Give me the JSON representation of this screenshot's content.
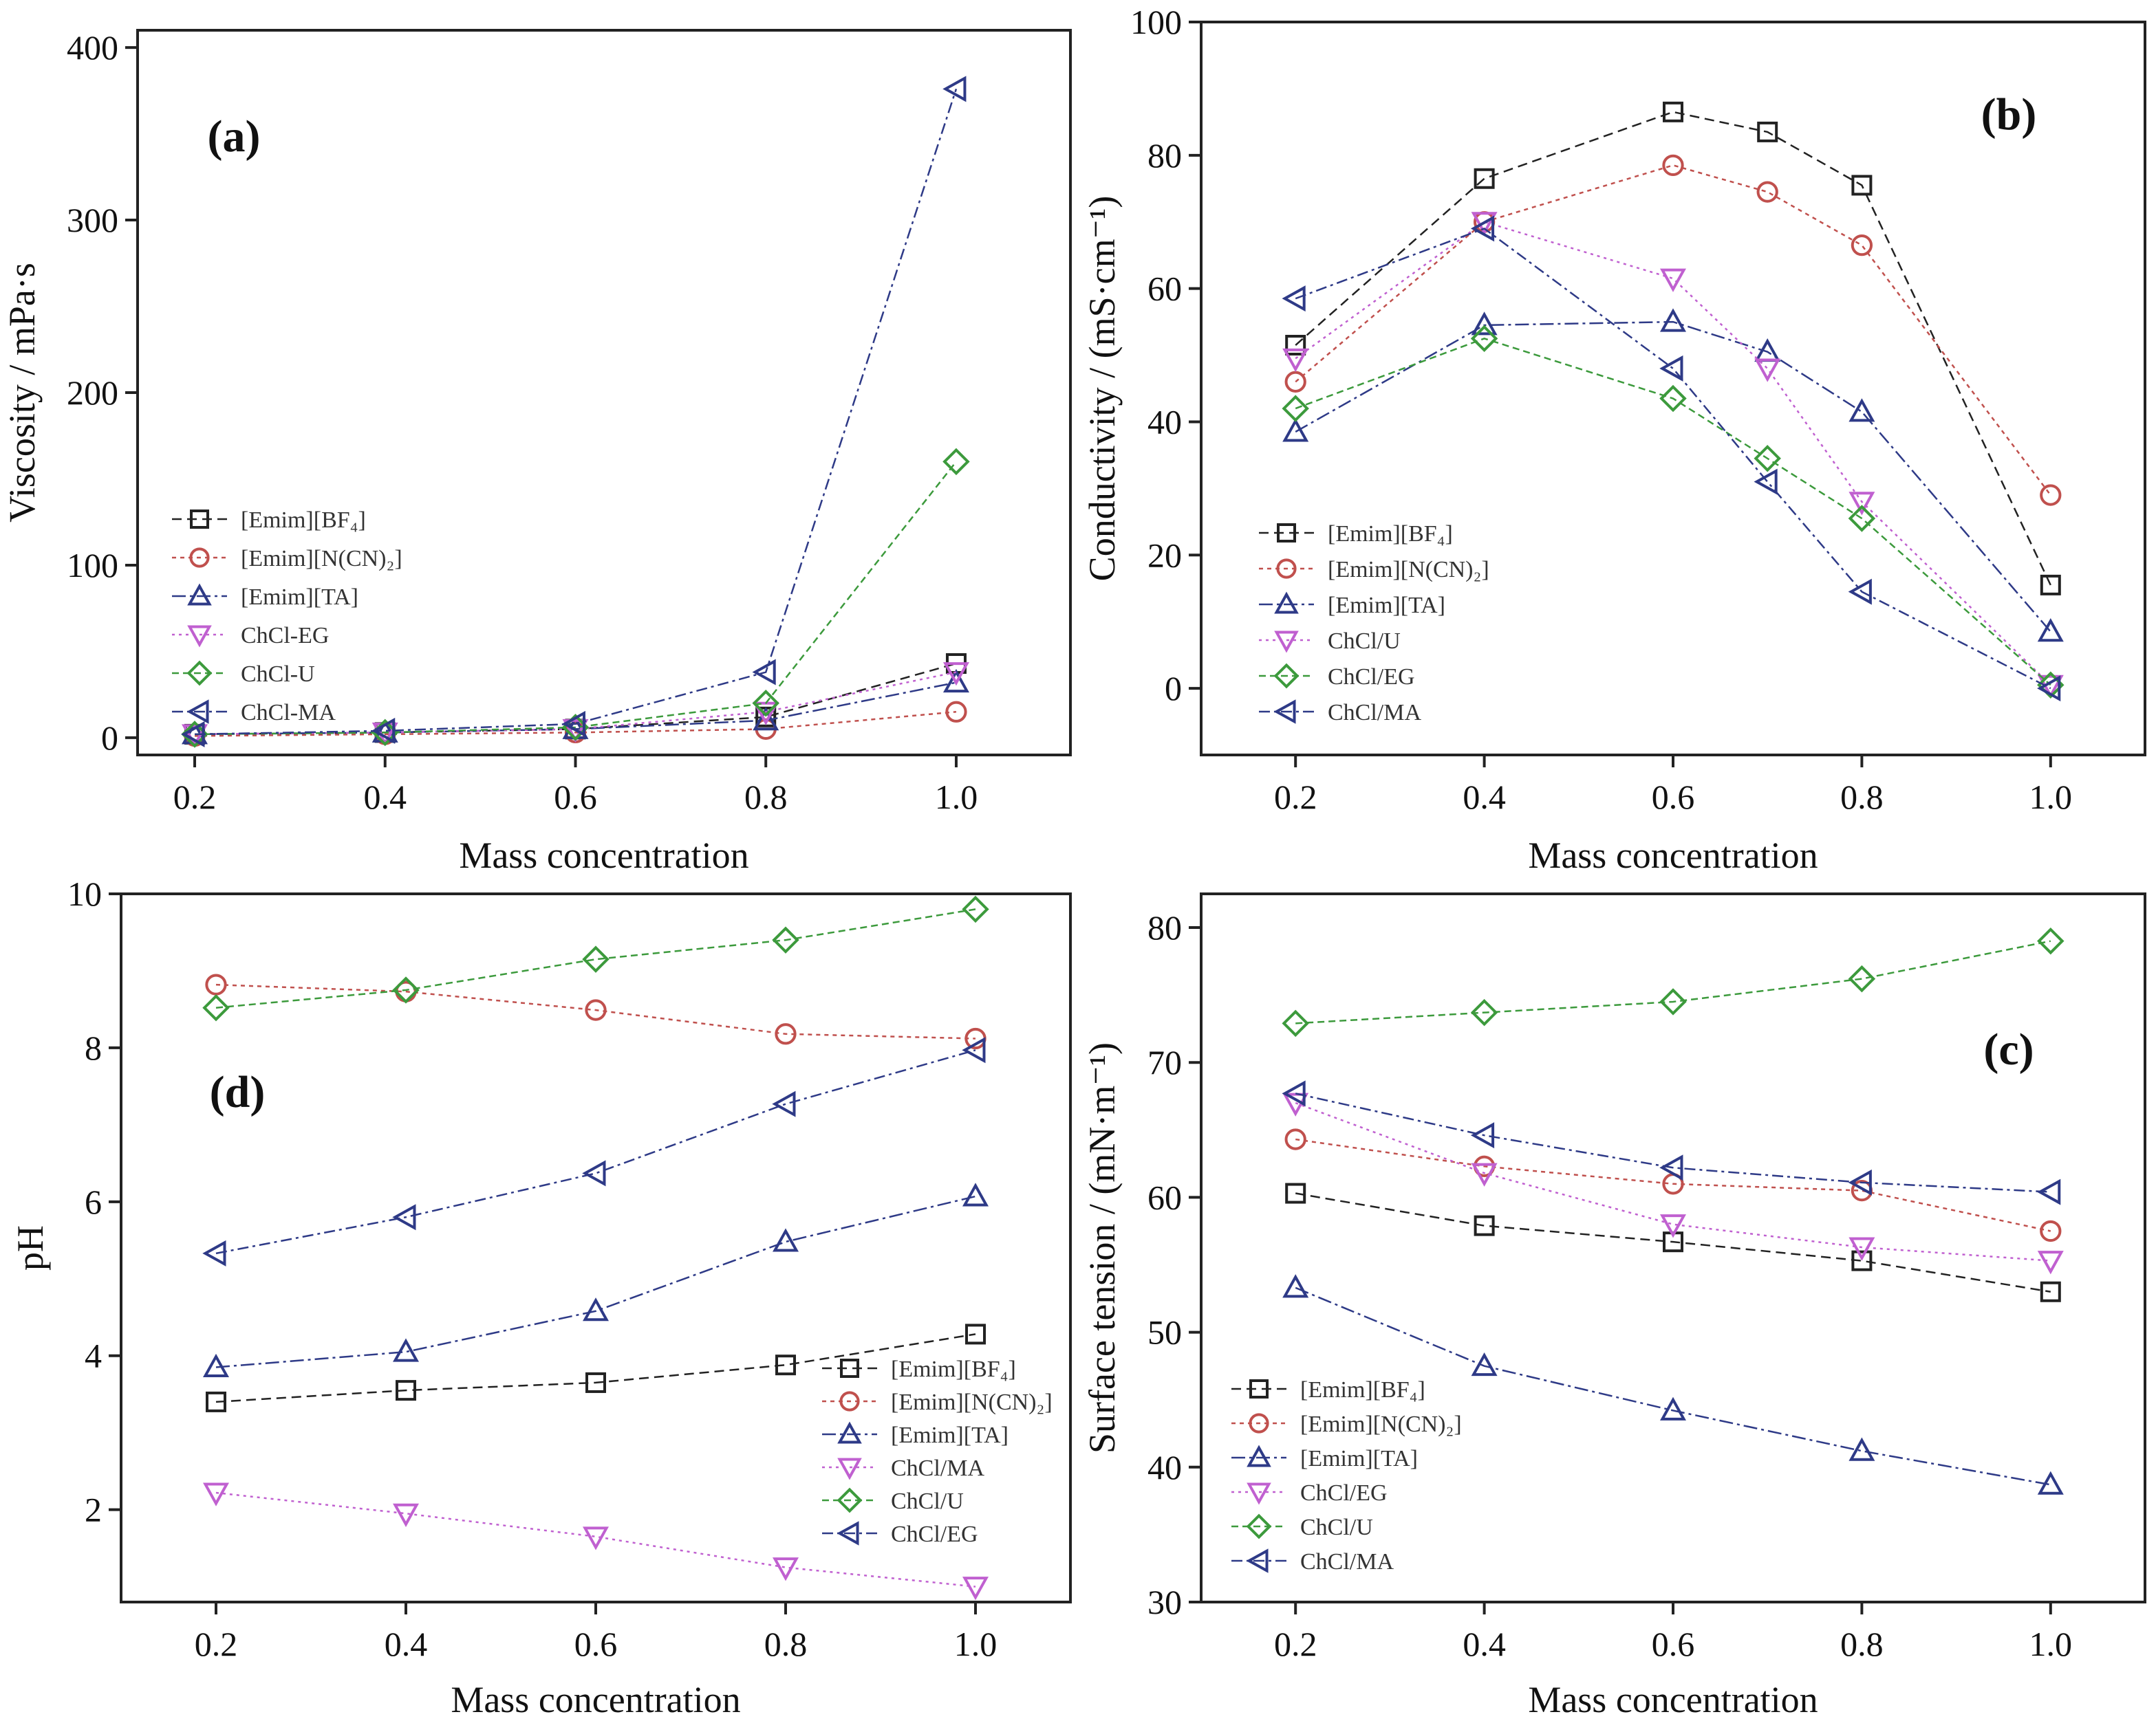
{
  "chart_data": [
    {
      "id": "a",
      "type": "line",
      "panel_label": "(a)",
      "xlabel": "Mass concentration",
      "ylabel": "Viscosity / mPa·s",
      "xlim": [
        0.14,
        1.12
      ],
      "ylim": [
        -10,
        410
      ],
      "xticks": [
        0.2,
        0.4,
        0.6,
        0.8,
        1.0
      ],
      "xtick_labels": [
        "0.2",
        "0.4",
        "0.6",
        "0.8",
        "1.0"
      ],
      "yticks": [
        0,
        100,
        200,
        300,
        400
      ],
      "ytick_labels": [
        "0",
        "100",
        "200",
        "300",
        "400"
      ],
      "legend_position": "lower-left",
      "series": [
        {
          "name": "[Emim][BF4]",
          "label": "[Emim][BF₄]",
          "marker": "square",
          "color": "#222222",
          "x": [
            0.2,
            0.4,
            0.6,
            0.8,
            1.0
          ],
          "y": [
            2,
            3,
            5,
            12,
            43
          ]
        },
        {
          "name": "[Emim][N(CN)2]",
          "label": "[Emim][N(CN)₂]",
          "marker": "circle",
          "color": "#c0504d",
          "x": [
            0.2,
            0.4,
            0.6,
            0.8,
            1.0
          ],
          "y": [
            1,
            2,
            3,
            5,
            15
          ]
        },
        {
          "name": "[Emim][TA]",
          "label": "[Emim][TA]",
          "marker": "triangle-up",
          "color": "#2e3a87",
          "x": [
            0.2,
            0.4,
            0.6,
            0.8,
            1.0
          ],
          "y": [
            2,
            3,
            5,
            10,
            32
          ]
        },
        {
          "name": "ChCl-EG",
          "label": "ChCl-EG",
          "marker": "triangle-down",
          "color": "#c060d0",
          "x": [
            0.2,
            0.4,
            0.6,
            0.8,
            1.0
          ],
          "y": [
            2,
            3,
            5,
            15,
            38
          ]
        },
        {
          "name": "ChCl-U",
          "label": "ChCl-U",
          "marker": "diamond",
          "color": "#3c9a3c",
          "x": [
            0.2,
            0.4,
            0.6,
            0.8,
            1.0
          ],
          "y": [
            2,
            3,
            6,
            20,
            160
          ]
        },
        {
          "name": "ChCl-MA",
          "label": "ChCl-MA",
          "marker": "triangle-left",
          "color": "#2e3a87",
          "x": [
            0.2,
            0.4,
            0.6,
            0.8,
            1.0
          ],
          "y": [
            2,
            4,
            8,
            38,
            376
          ]
        }
      ]
    },
    {
      "id": "b",
      "type": "line",
      "panel_label": "(b)",
      "xlabel": "Mass concentration",
      "ylabel": "Conductivity / (mS·cm⁻¹)",
      "xlim": [
        0.1,
        1.1
      ],
      "ylim": [
        -10,
        100
      ],
      "xticks": [
        0.2,
        0.4,
        0.6,
        0.8,
        1.0
      ],
      "xtick_labels": [
        "0.2",
        "0.4",
        "0.6",
        "0.8",
        "1.0"
      ],
      "yticks": [
        0,
        20,
        40,
        60,
        80,
        100
      ],
      "ytick_labels": [
        "0",
        "20",
        "40",
        "60",
        "80",
        "100"
      ],
      "legend_position": "lower-left",
      "series": [
        {
          "name": "[Emim][BF4]",
          "label": "[Emim][BF₄]",
          "marker": "square",
          "color": "#222222",
          "x": [
            0.2,
            0.4,
            0.6,
            0.7,
            0.8,
            1.0
          ],
          "y": [
            51.5,
            76.5,
            86.5,
            83.5,
            75.5,
            15.5
          ]
        },
        {
          "name": "[Emim][N(CN)2]",
          "label": "[Emim][N(CN)₂]",
          "marker": "circle",
          "color": "#c0504d",
          "x": [
            0.2,
            0.4,
            0.6,
            0.7,
            0.8,
            1.0
          ],
          "y": [
            46,
            70,
            78.5,
            74.5,
            66.5,
            29
          ]
        },
        {
          "name": "[Emim][TA]",
          "label": "[Emim][TA]",
          "marker": "triangle-up",
          "color": "#2e3a87",
          "x": [
            0.2,
            0.4,
            0.6,
            0.7,
            0.8,
            1.0
          ],
          "y": [
            38.5,
            54.5,
            55,
            50.5,
            41.5,
            8.5
          ]
        },
        {
          "name": "ChCl/U",
          "label": "ChCl/U",
          "marker": "triangle-down",
          "color": "#c060d0",
          "x": [
            0.2,
            0.4,
            0.6,
            0.7,
            0.8,
            1.0
          ],
          "y": [
            49.5,
            70,
            61.5,
            48,
            28,
            0.5
          ]
        },
        {
          "name": "ChCl/EG",
          "label": "ChCl/EG",
          "marker": "diamond",
          "color": "#3c9a3c",
          "x": [
            0.2,
            0.4,
            0.6,
            0.7,
            0.8,
            1.0
          ],
          "y": [
            42,
            52.5,
            43.5,
            34.5,
            25.5,
            0.5
          ]
        },
        {
          "name": "ChCl/MA",
          "label": "ChCl/MA",
          "marker": "triangle-left",
          "color": "#2e3a87",
          "x": [
            0.2,
            0.4,
            0.6,
            0.7,
            0.8,
            1.0
          ],
          "y": [
            58.5,
            69,
            48,
            31,
            14.5,
            0
          ]
        }
      ]
    },
    {
      "id": "d",
      "type": "line",
      "panel_label": "(d)",
      "xlabel": "Mass concentration",
      "ylabel": "pH",
      "xlim": [
        0.1,
        1.1
      ],
      "ylim": [
        0.8,
        10
      ],
      "xticks": [
        0.2,
        0.4,
        0.6,
        0.8,
        1.0
      ],
      "xtick_labels": [
        "0.2",
        "0.4",
        "0.6",
        "0.8",
        "1.0"
      ],
      "yticks": [
        2,
        4,
        6,
        8,
        10
      ],
      "ytick_labels": [
        "2",
        "4",
        "6",
        "8",
        "10"
      ],
      "legend_position": "lower-right",
      "series": [
        {
          "name": "[Emim][BF4]",
          "label": "[Emim][BF₄]",
          "marker": "square",
          "color": "#222222",
          "x": [
            0.2,
            0.4,
            0.6,
            0.8,
            1.0
          ],
          "y": [
            3.4,
            3.55,
            3.65,
            3.88,
            4.28
          ]
        },
        {
          "name": "[Emim][N(CN)2]",
          "label": "[Emim][N(CN)₂]",
          "marker": "circle",
          "color": "#c0504d",
          "x": [
            0.2,
            0.4,
            0.6,
            0.8,
            1.0
          ],
          "y": [
            8.82,
            8.73,
            8.49,
            8.18,
            8.12
          ]
        },
        {
          "name": "[Emim][TA]",
          "label": "[Emim][TA]",
          "marker": "triangle-up",
          "color": "#2e3a87",
          "x": [
            0.2,
            0.4,
            0.6,
            0.8,
            1.0
          ],
          "y": [
            3.85,
            4.05,
            4.58,
            5.48,
            6.07
          ]
        },
        {
          "name": "ChCl/MA",
          "label": "ChCl/MA",
          "marker": "triangle-down",
          "color": "#c060d0",
          "x": [
            0.2,
            0.4,
            0.6,
            0.8,
            1.0
          ],
          "y": [
            2.22,
            1.95,
            1.65,
            1.25,
            1.0
          ]
        },
        {
          "name": "ChCl/U",
          "label": "ChCl/U",
          "marker": "diamond",
          "color": "#3c9a3c",
          "x": [
            0.2,
            0.4,
            0.6,
            0.8,
            1.0
          ],
          "y": [
            8.52,
            8.75,
            9.15,
            9.4,
            9.8
          ]
        },
        {
          "name": "ChCl/EG",
          "label": "ChCl/EG",
          "marker": "triangle-left",
          "color": "#2e3a87",
          "x": [
            0.2,
            0.4,
            0.6,
            0.8,
            1.0
          ],
          "y": [
            5.33,
            5.8,
            6.37,
            7.27,
            7.97
          ]
        }
      ]
    },
    {
      "id": "c",
      "type": "line",
      "panel_label": "(c)",
      "xlabel": "Mass concentration",
      "ylabel": "Surface tension / (mN·m⁻¹)",
      "xlim": [
        0.1,
        1.1
      ],
      "ylim": [
        30,
        82.5
      ],
      "xticks": [
        0.2,
        0.4,
        0.6,
        0.8,
        1.0
      ],
      "xtick_labels": [
        "0.2",
        "0.4",
        "0.6",
        "0.8",
        "1.0"
      ],
      "yticks": [
        30,
        40,
        50,
        60,
        70,
        80
      ],
      "ytick_labels": [
        "30",
        "40",
        "50",
        "60",
        "70",
        "80"
      ],
      "legend_position": "lower-left",
      "series": [
        {
          "name": "[Emim][BF4]",
          "label": "[Emim][BF₄]",
          "marker": "square",
          "color": "#222222",
          "x": [
            0.2,
            0.4,
            0.6,
            0.8,
            1.0
          ],
          "y": [
            60.3,
            57.9,
            56.7,
            55.3,
            53.0
          ]
        },
        {
          "name": "[Emim][N(CN)2]",
          "label": "[Emim][N(CN)₂]",
          "marker": "circle",
          "color": "#c0504d",
          "x": [
            0.2,
            0.4,
            0.6,
            0.8,
            1.0
          ],
          "y": [
            64.3,
            62.3,
            61.0,
            60.5,
            57.5
          ]
        },
        {
          "name": "[Emim][TA]",
          "label": "[Emim][TA]",
          "marker": "triangle-up",
          "color": "#2e3a87",
          "x": [
            0.2,
            0.4,
            0.6,
            0.8,
            1.0
          ],
          "y": [
            53.3,
            47.5,
            44.2,
            41.2,
            38.7
          ]
        },
        {
          "name": "ChCl/EG",
          "label": "ChCl/EG",
          "marker": "triangle-down",
          "color": "#c060d0",
          "x": [
            0.2,
            0.4,
            0.6,
            0.8,
            1.0
          ],
          "y": [
            67.0,
            61.8,
            58.0,
            56.3,
            55.3
          ]
        },
        {
          "name": "ChCl/U",
          "label": "ChCl/U",
          "marker": "diamond",
          "color": "#3c9a3c",
          "x": [
            0.2,
            0.4,
            0.6,
            0.8,
            1.0
          ],
          "y": [
            72.9,
            73.7,
            74.5,
            76.2,
            79.0
          ]
        },
        {
          "name": "ChCl/MA",
          "label": "ChCl/MA",
          "marker": "triangle-left",
          "color": "#2e3a87",
          "x": [
            0.2,
            0.4,
            0.6,
            0.8,
            1.0
          ],
          "y": [
            67.7,
            64.6,
            62.2,
            61.1,
            60.4
          ]
        }
      ]
    }
  ]
}
